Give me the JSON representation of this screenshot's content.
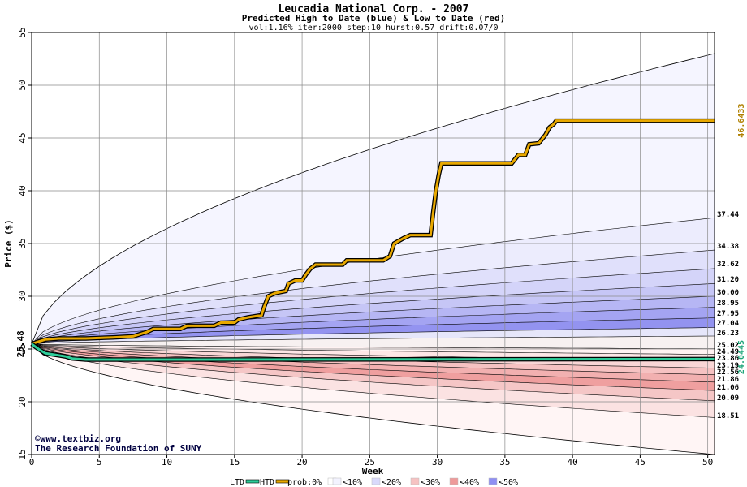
{
  "chart_data": {
    "type": "area",
    "title": "Leucadia National Corp. - 2007",
    "subtitle": "Predicted High to Date (blue) &  Low to Date (red)",
    "params": "vol:1.16% iter:2000 step:10 hurst:0.57 drift:0.07/0",
    "xlabel": "Week",
    "ylabel": "Price ($)",
    "xlim": [
      0,
      50.5
    ],
    "ylim": [
      15,
      55
    ],
    "x_ticks": [
      0,
      5,
      10,
      15,
      20,
      25,
      30,
      35,
      40,
      45,
      50
    ],
    "y_ticks": [
      15,
      20,
      25,
      30,
      35,
      40,
      45,
      50,
      55
    ],
    "grid": true,
    "start_price": 25.48,
    "start_price_label": "25.48",
    "high_band_end_labels": [
      "37.44",
      "34.38",
      "32.62",
      "31.20",
      "30.00",
      "28.95",
      "27.95",
      "27.04",
      "26.23"
    ],
    "low_band_end_labels": [
      "25.02",
      "24.49",
      "23.86",
      "23.19",
      "22.56",
      "21.86",
      "21.06",
      "20.09",
      "18.51"
    ],
    "high_bands_end": [
      53.0,
      37.44,
      34.38,
      32.62,
      31.2,
      30.0,
      28.95,
      27.95,
      27.04,
      26.23
    ],
    "low_bands_end": [
      25.02,
      24.49,
      23.86,
      23.19,
      22.56,
      21.86,
      21.06,
      20.09,
      18.51,
      15.0
    ],
    "htd_final_label": "46.6433",
    "ltd_final_label": "24.0445",
    "series": [
      {
        "name": "HTD",
        "color": "#e8a800",
        "points": [
          [
            0,
            25.48
          ],
          [
            0.5,
            25.7
          ],
          [
            1,
            25.9
          ],
          [
            2,
            26.0
          ],
          [
            4,
            26.0
          ],
          [
            6,
            26.1
          ],
          [
            7.5,
            26.2
          ],
          [
            8,
            26.4
          ],
          [
            8.5,
            26.6
          ],
          [
            9,
            26.9
          ],
          [
            11,
            26.9
          ],
          [
            11.5,
            27.2
          ],
          [
            13.5,
            27.2
          ],
          [
            14,
            27.5
          ],
          [
            15,
            27.5
          ],
          [
            15.3,
            27.8
          ],
          [
            16,
            28.0
          ],
          [
            17,
            28.2
          ],
          [
            17.2,
            29.0
          ],
          [
            17.5,
            30.0
          ],
          [
            18,
            30.3
          ],
          [
            18.8,
            30.5
          ],
          [
            19,
            31.2
          ],
          [
            19.5,
            31.5
          ],
          [
            20,
            31.5
          ],
          [
            20.3,
            32.1
          ],
          [
            20.6,
            32.6
          ],
          [
            21,
            33.0
          ],
          [
            23,
            33.0
          ],
          [
            23.3,
            33.4
          ],
          [
            26,
            33.4
          ],
          [
            26.5,
            33.8
          ],
          [
            26.8,
            35.0
          ],
          [
            27.5,
            35.5
          ],
          [
            28,
            35.8
          ],
          [
            29.5,
            35.8
          ],
          [
            29.7,
            38.0
          ],
          [
            29.9,
            40.0
          ],
          [
            30.1,
            41.5
          ],
          [
            30.3,
            42.6
          ],
          [
            35.5,
            42.6
          ],
          [
            36,
            43.4
          ],
          [
            36.5,
            43.4
          ],
          [
            36.8,
            44.4
          ],
          [
            37.5,
            44.5
          ],
          [
            38,
            45.3
          ],
          [
            38.3,
            46.0
          ],
          [
            38.6,
            46.3
          ],
          [
            38.8,
            46.6433
          ],
          [
            50.5,
            46.6433
          ]
        ]
      },
      {
        "name": "LTD",
        "color": "#2ecc99",
        "points": [
          [
            0,
            25.48
          ],
          [
            0.5,
            25.0
          ],
          [
            1,
            24.6
          ],
          [
            1.5,
            24.5
          ],
          [
            2,
            24.4
          ],
          [
            2.5,
            24.3
          ],
          [
            3,
            24.1
          ],
          [
            4,
            24.0
          ],
          [
            6,
            24.0
          ],
          [
            10,
            24.0
          ],
          [
            50.5,
            24.0445
          ]
        ]
      }
    ],
    "legend_items": [
      {
        "key": "ltd",
        "label": "LTD",
        "color": "#2ecc99"
      },
      {
        "key": "htd",
        "label": "HTD",
        "color": "#e8a800"
      },
      {
        "key": "p0",
        "label": "prob:0%",
        "color": "#ffffff"
      },
      {
        "key": "p10",
        "label": "<10%",
        "color": "#f3f3ff"
      },
      {
        "key": "p20",
        "label": "<20%",
        "color": "#d9d9fb"
      },
      {
        "key": "p30",
        "label": "<30%",
        "color": "#f6c2c2"
      },
      {
        "key": "p40",
        "label": "<40%",
        "color": "#ee9a9a"
      },
      {
        "key": "p50",
        "label": "<50%",
        "color": "#8f8ff2"
      }
    ],
    "credit_line1": "©www.textbiz.org",
    "credit_line2": "The Research Foundation of SUNY"
  }
}
